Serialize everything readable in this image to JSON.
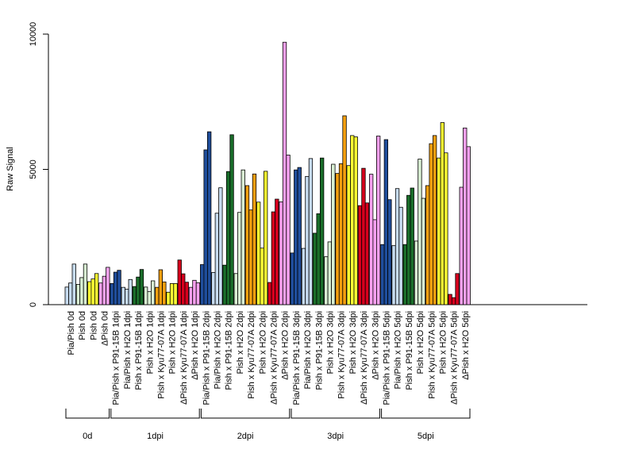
{
  "chart_data": {
    "type": "bar",
    "ylabel": "Raw Signal",
    "ylim": [
      0,
      10000
    ],
    "yticks": [
      0,
      5000,
      10000
    ],
    "bars_per_category": 3,
    "categories": [
      "Pia/Pish 0d",
      "Pish 0d",
      "Pish 0d",
      "ΔPish 0d",
      "Pia/Pish x P91-15B 1dpi",
      "Pia/Pish x H2O 1dpi",
      "Pish x P91-15B 1dpi",
      "Pish x H2O 1dpi",
      "Pish x Kyu77-07A 1dpi",
      "Pish x H2O 1dpi",
      "ΔPish x Kyu77-07A 1dpi",
      "ΔPish x H2O 1dpi",
      "Pia/Pish x P91-15B 2dpi",
      "Pia/Pish x H2O 2dpi",
      "Pish x P91-15B 2dpi",
      "Pish x H2O 2dpi",
      "Pish x Kyu77-07A 2dpi",
      "Pish x H2O 2dpi",
      "ΔPish x Kyu77-07A 2dpi",
      "ΔPish x H2O 2dpi",
      "Pia/Pish x P91-15B 3dpi",
      "Pia/Pish x H2O 3dpi",
      "Pish x P91-15B 3dpi",
      "Pish x H2O 3dpi",
      "Pish x Kyu77-07A 3dpi",
      "Pish x H2O 3dpi",
      "ΔPish x Kyu77-07A 3dpi",
      "ΔPish x H2O 3dpi",
      "Pia/Pish x P91-15B 5dpi",
      "Pia/Pish x H2O 5dpi",
      "Pish x P91-15B 5dpi",
      "Pish x H2O 5dpi",
      "Pish x Kyu77-07A 5dpi",
      "Pish x H2O 5dpi",
      "ΔPish x Kyu77-07A 5dpi",
      "ΔPish x H2O 5dpi"
    ],
    "colors": [
      "#c6dbef",
      "#d9f0d3",
      "#ffff33",
      "#f7a1f0",
      "#1f4e9c",
      "#c6dbef",
      "#1a6e2a",
      "#d9f0d3",
      "#f5a00f",
      "#ffff33",
      "#d7001d",
      "#f7a1f0",
      "#1f4e9c",
      "#c6dbef",
      "#1a6e2a",
      "#d9f0d3",
      "#f5a00f",
      "#ffff33",
      "#d7001d",
      "#f7a1f0",
      "#1f4e9c",
      "#c6dbef",
      "#1a6e2a",
      "#d9f0d3",
      "#f5a00f",
      "#ffff33",
      "#d7001d",
      "#f7a1f0",
      "#1f4e9c",
      "#c6dbef",
      "#1a6e2a",
      "#d9f0d3",
      "#f5a00f",
      "#ffff33",
      "#d7001d",
      "#f7a1f0"
    ],
    "values": [
      [
        650,
        800,
        1500
      ],
      [
        750,
        1000,
        1500
      ],
      [
        850,
        950,
        1150
      ],
      [
        800,
        1050,
        1380
      ],
      [
        780,
        1200,
        1270
      ],
      [
        640,
        570,
        930
      ],
      [
        670,
        1020,
        1300
      ],
      [
        650,
        480,
        880
      ],
      [
        640,
        1290,
        840
      ],
      [
        460,
        780,
        780
      ],
      [
        1650,
        1140,
        830
      ],
      [
        640,
        900,
        810
      ],
      [
        1480,
        5720,
        6390
      ],
      [
        1190,
        3380,
        4320
      ],
      [
        1460,
        4920,
        6280
      ],
      [
        1150,
        3410,
        4980
      ],
      [
        4400,
        3500,
        4830
      ],
      [
        3790,
        2090,
        4930
      ],
      [
        820,
        3430,
        3900
      ],
      [
        3800,
        9700,
        5530
      ],
      [
        1910,
        4980,
        5070
      ],
      [
        2080,
        4740,
        5400
      ],
      [
        2640,
        3360,
        5420
      ],
      [
        1770,
        2320,
        5190
      ],
      [
        4850,
        5210,
        6980
      ],
      [
        5140,
        6250,
        6200
      ],
      [
        3660,
        5040,
        3760
      ],
      [
        4820,
        3140,
        6230
      ],
      [
        2220,
        6100,
        3880
      ],
      [
        2180,
        4290,
        3600
      ],
      [
        2220,
        4040,
        4310
      ],
      [
        2350,
        5380,
        3930
      ],
      [
        4400,
        5950,
        6250
      ],
      [
        5420,
        6730,
        5610
      ],
      [
        380,
        260,
        1150
      ],
      [
        4340,
        6530,
        5840
      ]
    ],
    "groups": [
      {
        "label": "0d",
        "start": 0,
        "end": 3
      },
      {
        "label": "1dpi",
        "start": 4,
        "end": 11
      },
      {
        "label": "2dpi",
        "start": 12,
        "end": 19
      },
      {
        "label": "3dpi",
        "start": 20,
        "end": 27
      },
      {
        "label": "5dpi",
        "start": 28,
        "end": 35
      }
    ]
  }
}
